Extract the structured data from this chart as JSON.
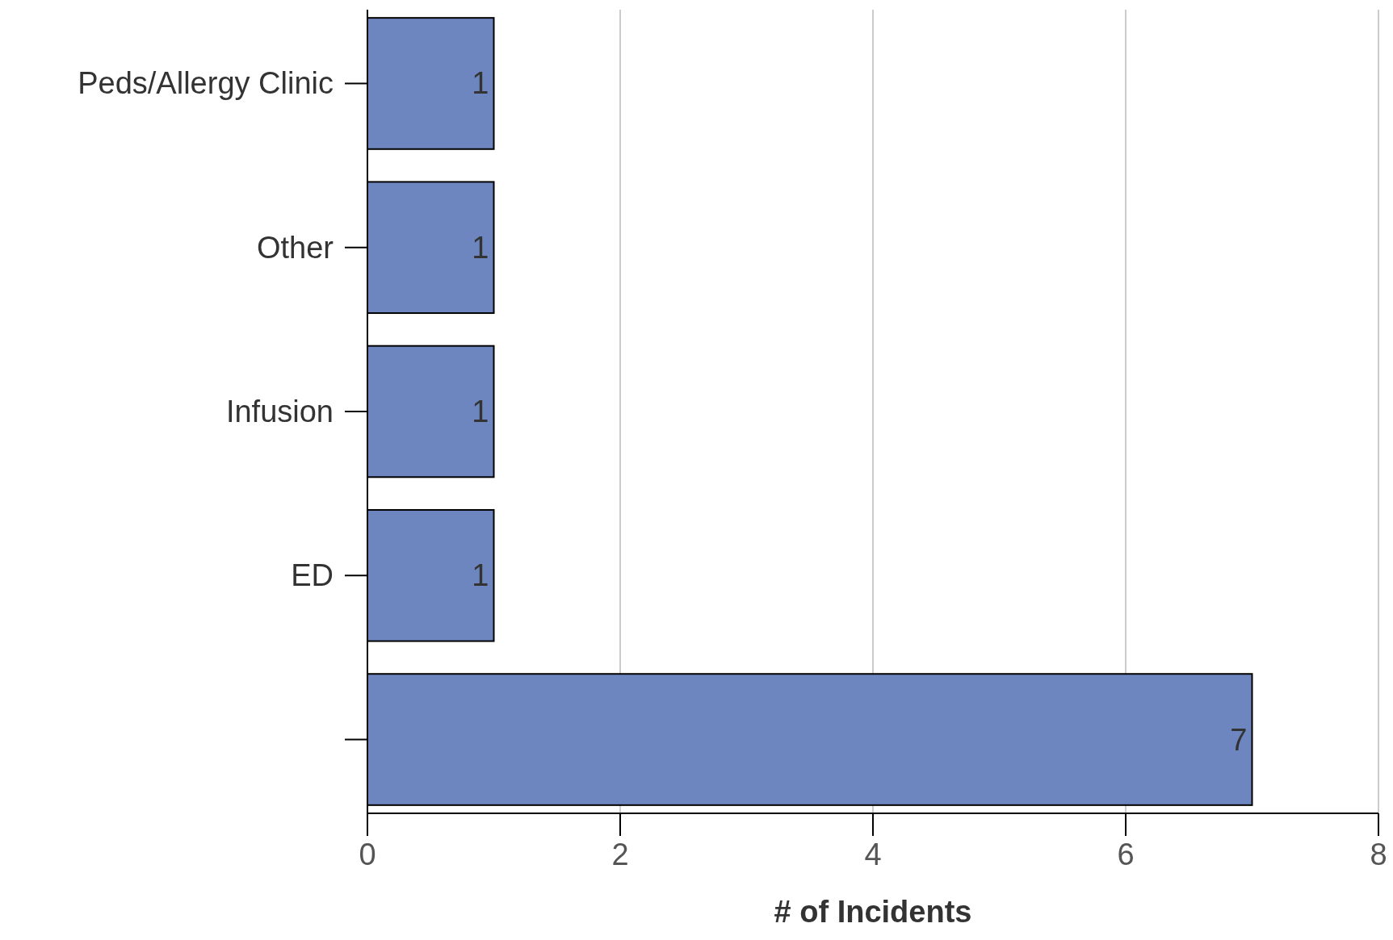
{
  "chart_data": {
    "type": "bar",
    "orientation": "horizontal",
    "xlabel": "# of Incidents",
    "categories": [
      "Peds/Allergy Clinic",
      "Other",
      "Infusion",
      "ED",
      null
    ],
    "values": [
      1,
      1,
      1,
      1,
      7
    ],
    "color": "#6d86bf",
    "xlim": [
      0,
      8
    ],
    "xticks": [
      0,
      2,
      4,
      6,
      8
    ],
    "grid": "x",
    "data_labels": true
  }
}
